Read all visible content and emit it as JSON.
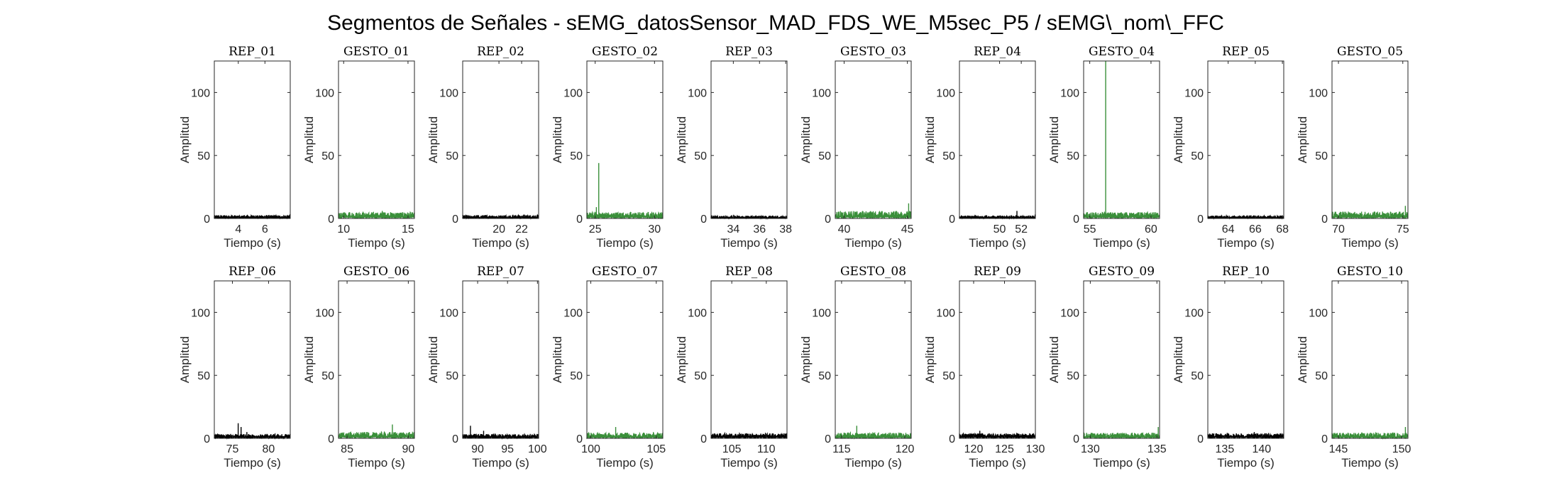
{
  "figure": {
    "title": "Segmentos de Señales - sEMG_datosSensor_MAD_FDS_WE_M5sec_P5 / sEMG\\_nom\\_FFC",
    "colors": {
      "rep": "#000000",
      "gesto": "#3a8f3a",
      "axes": "#262626"
    }
  },
  "chart_data": [
    {
      "type": "line",
      "title": "REP_01",
      "xlabel": "Tiempo (s)",
      "ylabel": "Amplitud",
      "xlim": [
        2.2,
        7.9
      ],
      "ylim": [
        0,
        125
      ],
      "xticks": [
        4,
        6
      ],
      "yticks": [
        0,
        50,
        100
      ],
      "series": [
        {
          "name": "",
          "color": "#000000",
          "baseline": 1.5,
          "noise": 1.0,
          "spikes": []
        }
      ]
    },
    {
      "type": "line",
      "title": "GESTO_01",
      "xlabel": "Tiempo (s)",
      "ylabel": "Amplitud",
      "xlim": [
        9.6,
        15.5
      ],
      "ylim": [
        0,
        125
      ],
      "xticks": [
        10,
        15
      ],
      "yticks": [
        0,
        50,
        100
      ],
      "series": [
        {
          "name": "",
          "color": "#3a8f3a",
          "baseline": 3.0,
          "noise": 2.0,
          "spikes": [
            [
              13.0,
              6
            ]
          ]
        }
      ]
    },
    {
      "type": "line",
      "title": "REP_02",
      "xlabel": "Tiempo (s)",
      "ylabel": "Amplitud",
      "xlim": [
        16.8,
        23.5
      ],
      "ylim": [
        0,
        125
      ],
      "xticks": [
        20,
        22
      ],
      "yticks": [
        0,
        50,
        100
      ],
      "series": [
        {
          "name": "",
          "color": "#000000",
          "baseline": 1.5,
          "noise": 1.2,
          "spikes": []
        }
      ]
    },
    {
      "type": "line",
      "title": "GESTO_02",
      "xlabel": "Tiempo (s)",
      "ylabel": "Amplitud",
      "xlim": [
        24.3,
        30.7
      ],
      "ylim": [
        0,
        125
      ],
      "xticks": [
        25,
        30
      ],
      "yticks": [
        0,
        50,
        100
      ],
      "series": [
        {
          "name": "",
          "color": "#3a8f3a",
          "baseline": 3.0,
          "noise": 2.0,
          "spikes": [
            [
              25.3,
              44
            ],
            [
              25.1,
              9
            ]
          ]
        }
      ]
    },
    {
      "type": "line",
      "title": "REP_03",
      "xlabel": "Tiempo (s)",
      "ylabel": "Amplitud",
      "xlim": [
        32.3,
        38.1
      ],
      "ylim": [
        0,
        125
      ],
      "xticks": [
        34,
        36,
        38
      ],
      "yticks": [
        0,
        50,
        100
      ],
      "series": [
        {
          "name": "",
          "color": "#000000",
          "baseline": 1.2,
          "noise": 1.0,
          "spikes": []
        }
      ]
    },
    {
      "type": "line",
      "title": "GESTO_03",
      "xlabel": "Tiempo (s)",
      "ylabel": "Amplitud",
      "xlim": [
        39.3,
        45.3
      ],
      "ylim": [
        0,
        125
      ],
      "xticks": [
        40,
        45
      ],
      "yticks": [
        0,
        50,
        100
      ],
      "series": [
        {
          "name": "",
          "color": "#3a8f3a",
          "baseline": 3.5,
          "noise": 2.5,
          "spikes": [
            [
              45.1,
              12
            ]
          ]
        }
      ]
    },
    {
      "type": "line",
      "title": "REP_04",
      "xlabel": "Tiempo (s)",
      "ylabel": "Amplitud",
      "xlim": [
        46.3,
        53.3
      ],
      "ylim": [
        0,
        125
      ],
      "xticks": [
        50,
        52
      ],
      "yticks": [
        0,
        50,
        100
      ],
      "series": [
        {
          "name": "",
          "color": "#000000",
          "baseline": 1.3,
          "noise": 1.0,
          "spikes": [
            [
              51.6,
              6
            ]
          ]
        }
      ]
    },
    {
      "type": "line",
      "title": "GESTO_04",
      "xlabel": "Tiempo (s)",
      "ylabel": "Amplitud",
      "xlim": [
        54.5,
        60.7
      ],
      "ylim": [
        0,
        125
      ],
      "xticks": [
        55,
        60
      ],
      "yticks": [
        0,
        50,
        100
      ],
      "series": [
        {
          "name": "",
          "color": "#3a8f3a",
          "baseline": 3.0,
          "noise": 2.0,
          "spikes": [
            [
              56.3,
              125
            ]
          ]
        }
      ]
    },
    {
      "type": "line",
      "title": "REP_05",
      "xlabel": "Tiempo (s)",
      "ylabel": "Amplitud",
      "xlim": [
        62.5,
        68.1
      ],
      "ylim": [
        0,
        125
      ],
      "xticks": [
        64,
        66,
        68
      ],
      "yticks": [
        0,
        50,
        100
      ],
      "series": [
        {
          "name": "",
          "color": "#000000",
          "baseline": 1.2,
          "noise": 1.0,
          "spikes": []
        }
      ]
    },
    {
      "type": "line",
      "title": "GESTO_05",
      "xlabel": "Tiempo (s)",
      "ylabel": "Amplitud",
      "xlim": [
        69.5,
        75.4
      ],
      "ylim": [
        0,
        125
      ],
      "xticks": [
        70,
        75
      ],
      "yticks": [
        0,
        50,
        100
      ],
      "series": [
        {
          "name": "",
          "color": "#3a8f3a",
          "baseline": 3.0,
          "noise": 2.5,
          "spikes": [
            [
              75.2,
              10
            ]
          ]
        }
      ]
    },
    {
      "type": "line",
      "title": "REP_06",
      "xlabel": "Tiempo (s)",
      "ylabel": "Amplitud",
      "xlim": [
        72.5,
        83.0
      ],
      "ylim": [
        0,
        125
      ],
      "xticks": [
        75,
        80
      ],
      "yticks": [
        0,
        50,
        100
      ],
      "series": [
        {
          "name": "",
          "color": "#000000",
          "baseline": 2.0,
          "noise": 1.5,
          "spikes": [
            [
              75.8,
              12
            ],
            [
              76.2,
              9
            ],
            [
              77.0,
              5
            ]
          ]
        }
      ]
    },
    {
      "type": "line",
      "title": "GESTO_06",
      "xlabel": "Tiempo (s)",
      "ylabel": "Amplitud",
      "xlim": [
        84.3,
        90.5
      ],
      "ylim": [
        0,
        125
      ],
      "xticks": [
        85,
        90
      ],
      "yticks": [
        0,
        50,
        100
      ],
      "series": [
        {
          "name": "",
          "color": "#3a8f3a",
          "baseline": 3.0,
          "noise": 2.0,
          "spikes": [
            [
              88.7,
              11
            ]
          ]
        }
      ]
    },
    {
      "type": "line",
      "title": "REP_07",
      "xlabel": "Tiempo (s)",
      "ylabel": "Amplitud",
      "xlim": [
        87.5,
        100.2
      ],
      "ylim": [
        0,
        125
      ],
      "xticks": [
        90,
        95,
        100
      ],
      "yticks": [
        0,
        50,
        100
      ],
      "series": [
        {
          "name": "",
          "color": "#000000",
          "baseline": 2.0,
          "noise": 1.5,
          "spikes": [
            [
              88.8,
              10
            ],
            [
              91.0,
              6
            ]
          ]
        }
      ]
    },
    {
      "type": "line",
      "title": "GESTO_07",
      "xlabel": "Tiempo (s)",
      "ylabel": "Amplitud",
      "xlim": [
        99.7,
        105.5
      ],
      "ylim": [
        0,
        125
      ],
      "xticks": [
        100,
        105
      ],
      "yticks": [
        0,
        50,
        100
      ],
      "series": [
        {
          "name": "",
          "color": "#3a8f3a",
          "baseline": 2.5,
          "noise": 2.0,
          "spikes": [
            [
              101.9,
              9
            ]
          ]
        }
      ]
    },
    {
      "type": "line",
      "title": "REP_08",
      "xlabel": "Tiempo (s)",
      "ylabel": "Amplitud",
      "xlim": [
        102.0,
        113.0
      ],
      "ylim": [
        0,
        125
      ],
      "xticks": [
        105,
        110
      ],
      "yticks": [
        0,
        50,
        100
      ],
      "series": [
        {
          "name": "",
          "color": "#000000",
          "baseline": 2.5,
          "noise": 1.5,
          "spikes": []
        }
      ]
    },
    {
      "type": "line",
      "title": "GESTO_08",
      "xlabel": "Tiempo (s)",
      "ylabel": "Amplitud",
      "xlim": [
        114.5,
        120.5
      ],
      "ylim": [
        0,
        125
      ],
      "xticks": [
        115,
        120
      ],
      "yticks": [
        0,
        50,
        100
      ],
      "series": [
        {
          "name": "",
          "color": "#3a8f3a",
          "baseline": 2.5,
          "noise": 2.0,
          "spikes": [
            [
              116.2,
              10
            ]
          ]
        }
      ]
    },
    {
      "type": "line",
      "title": "REP_09",
      "xlabel": "Tiempo (s)",
      "ylabel": "Amplitud",
      "xlim": [
        117.7,
        130.0
      ],
      "ylim": [
        0,
        125
      ],
      "xticks": [
        120,
        125,
        130
      ],
      "yticks": [
        0,
        50,
        100
      ],
      "series": [
        {
          "name": "",
          "color": "#000000",
          "baseline": 2.5,
          "noise": 1.5,
          "spikes": [
            [
              121.0,
              6
            ]
          ]
        }
      ]
    },
    {
      "type": "line",
      "title": "GESTO_09",
      "xlabel": "Tiempo (s)",
      "ylabel": "Amplitud",
      "xlim": [
        129.5,
        135.2
      ],
      "ylim": [
        0,
        125
      ],
      "xticks": [
        130,
        135
      ],
      "yticks": [
        0,
        50,
        100
      ],
      "series": [
        {
          "name": "",
          "color": "#3a8f3a",
          "baseline": 2.5,
          "noise": 2.0,
          "spikes": [
            [
              135.1,
              9
            ]
          ]
        }
      ]
    },
    {
      "type": "line",
      "title": "REP_10",
      "xlabel": "Tiempo (s)",
      "ylabel": "Amplitud",
      "xlim": [
        132.7,
        143.0
      ],
      "ylim": [
        0,
        125
      ],
      "xticks": [
        135,
        140
      ],
      "yticks": [
        0,
        50,
        100
      ],
      "series": [
        {
          "name": "",
          "color": "#000000",
          "baseline": 2.5,
          "noise": 1.5,
          "spikes": [
            [
              139.0,
              5
            ]
          ]
        }
      ]
    },
    {
      "type": "line",
      "title": "GESTO_10",
      "xlabel": "Tiempo (s)",
      "ylabel": "Amplitud",
      "xlim": [
        144.5,
        150.5
      ],
      "ylim": [
        0,
        125
      ],
      "xticks": [
        145,
        150
      ],
      "yticks": [
        0,
        50,
        100
      ],
      "series": [
        {
          "name": "",
          "color": "#3a8f3a",
          "baseline": 2.5,
          "noise": 2.0,
          "spikes": [
            [
              150.3,
              9
            ]
          ]
        }
      ]
    }
  ]
}
